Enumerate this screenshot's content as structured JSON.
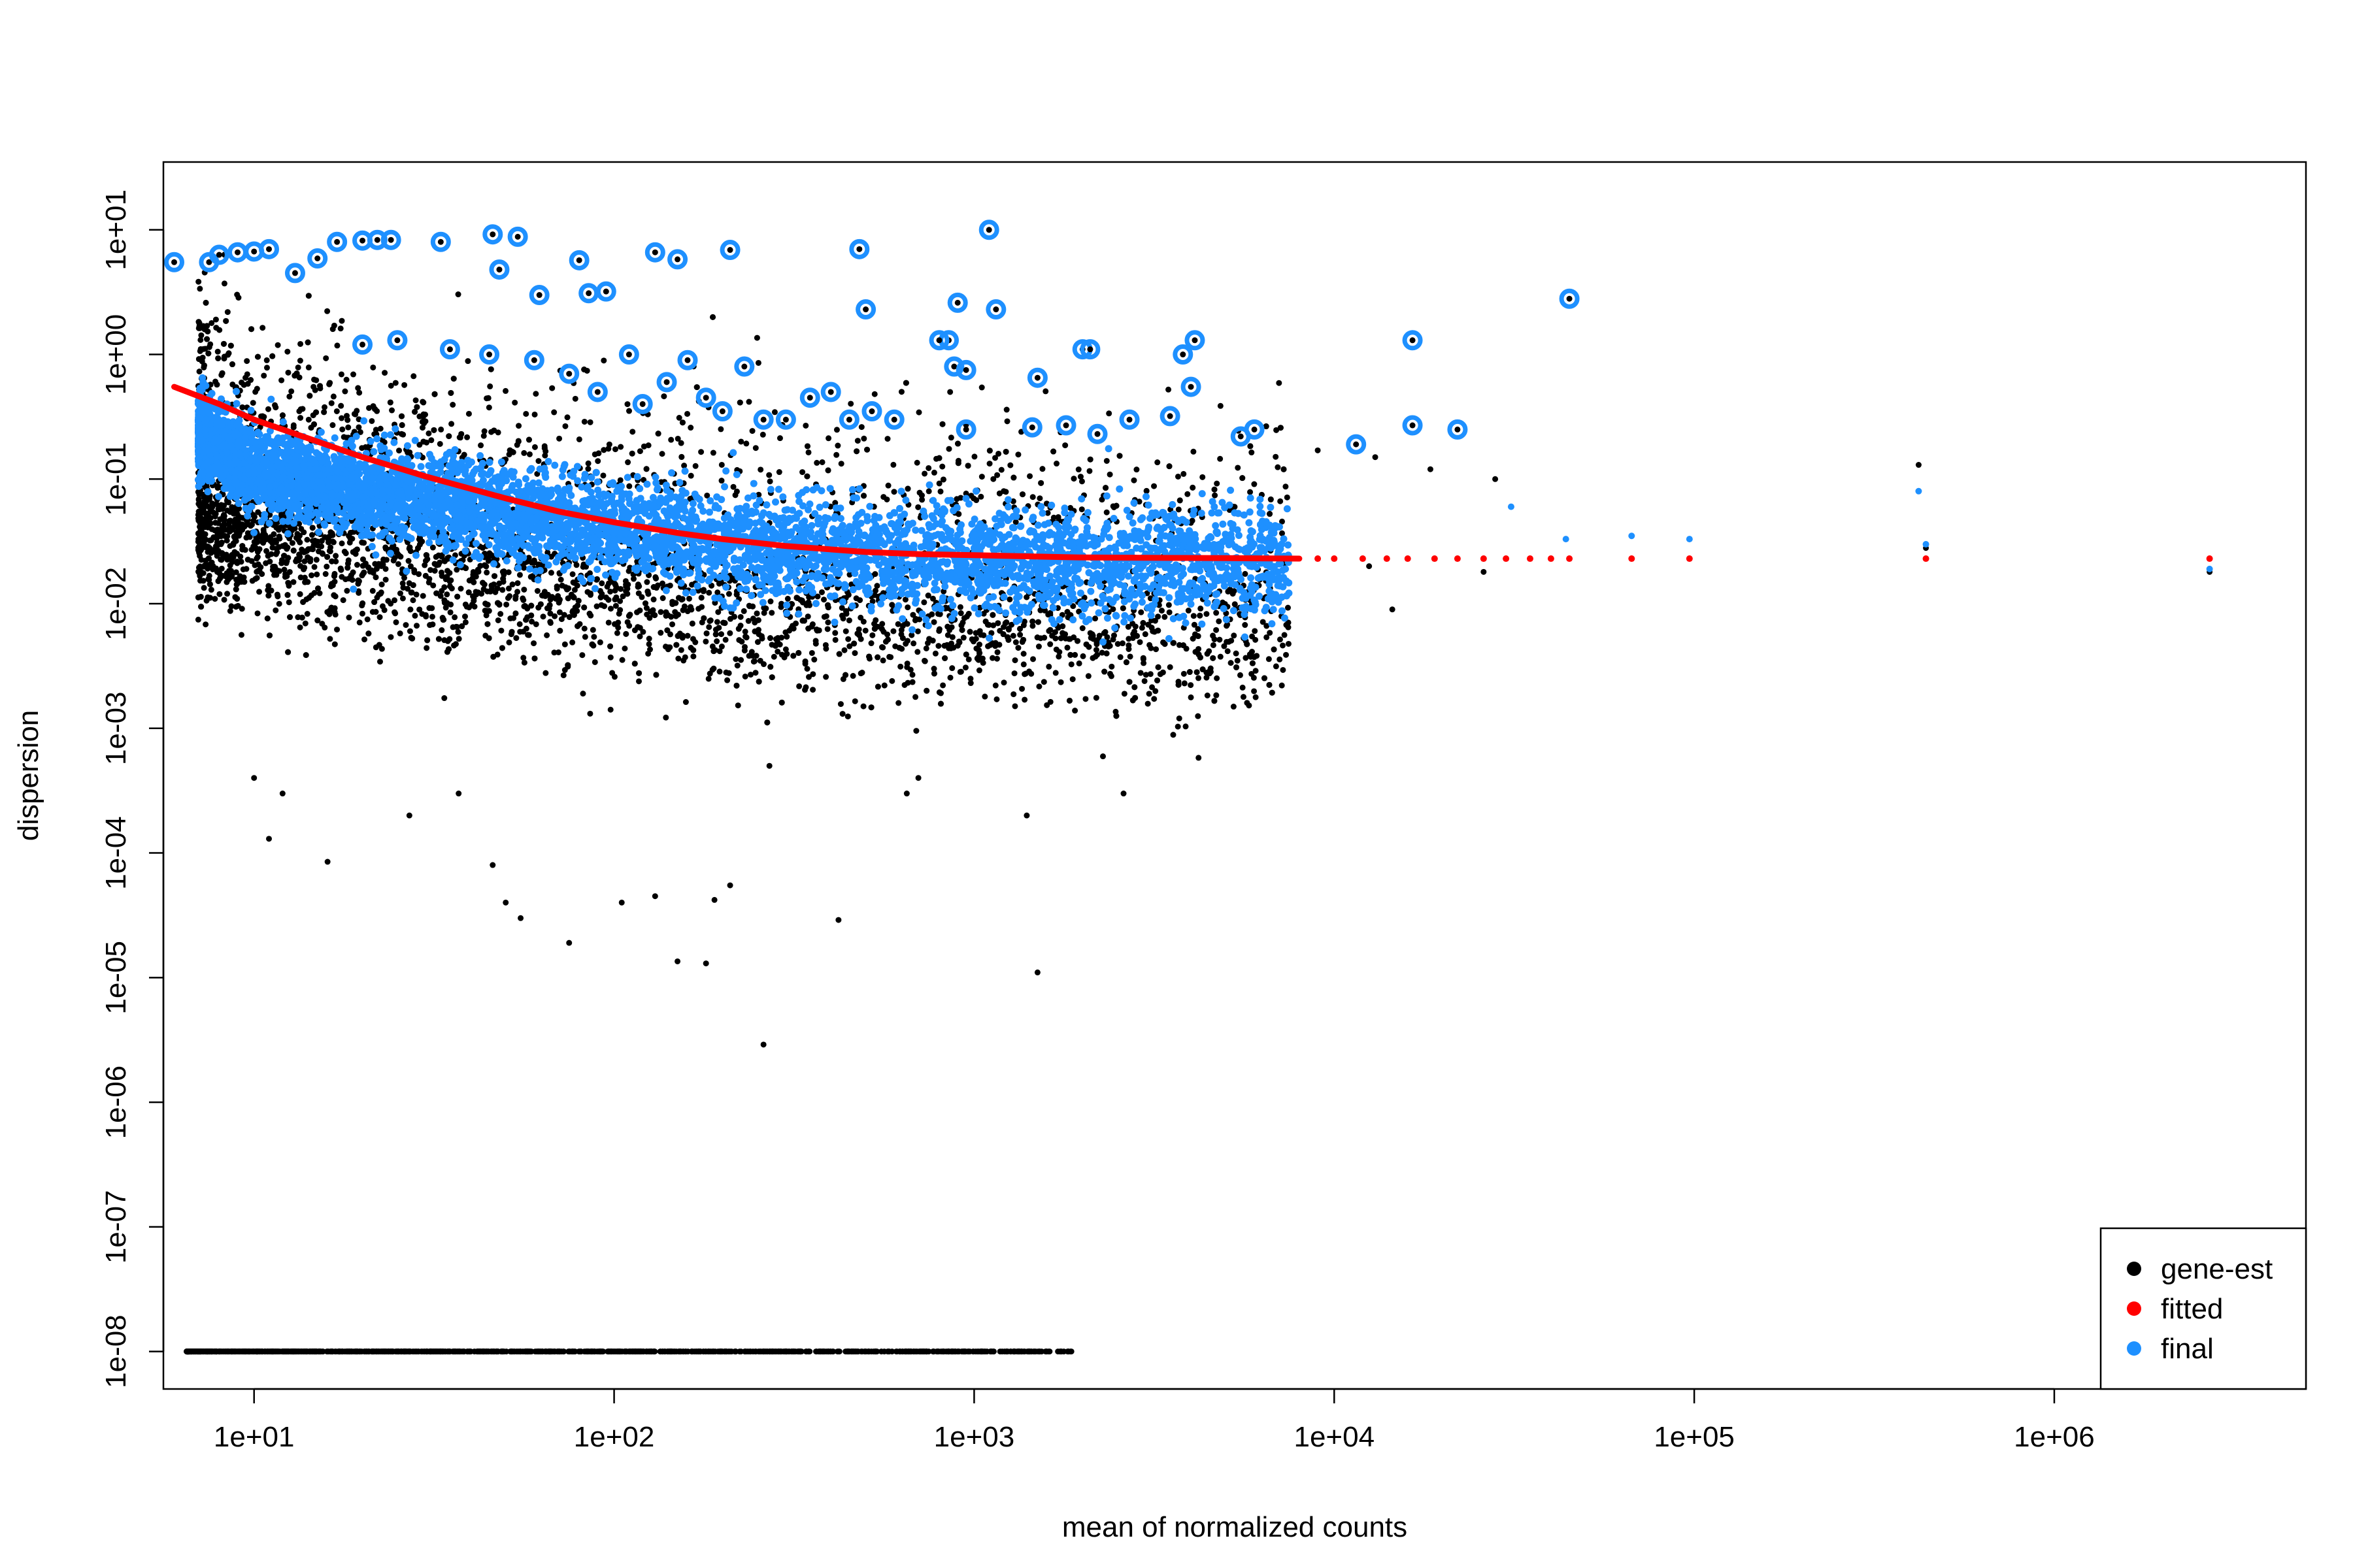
{
  "chart_data": {
    "type": "scatter",
    "title": "",
    "xlabel": "mean of normalized counts",
    "ylabel": "dispersion",
    "x_scale": "log10",
    "y_scale": "log10",
    "xlim": [
      5.6,
      5000000
    ],
    "ylim": [
      5e-09,
      35
    ],
    "x_ticks": [
      {
        "value": 10,
        "label": "1e+01"
      },
      {
        "value": 100,
        "label": "1e+02"
      },
      {
        "value": 1000,
        "label": "1e+03"
      },
      {
        "value": 10000,
        "label": "1e+04"
      },
      {
        "value": 100000,
        "label": "1e+05"
      },
      {
        "value": 1000000,
        "label": "1e+06"
      }
    ],
    "y_ticks": [
      {
        "value": 1e-08,
        "label": "1e-08"
      },
      {
        "value": 1e-07,
        "label": "1e-07"
      },
      {
        "value": 1e-06,
        "label": "1e-06"
      },
      {
        "value": 1e-05,
        "label": "1e-05"
      },
      {
        "value": 0.0001,
        "label": "1e-04"
      },
      {
        "value": 0.001,
        "label": "1e-03"
      },
      {
        "value": 0.01,
        "label": "1e-02"
      },
      {
        "value": 0.1,
        "label": "1e-01"
      },
      {
        "value": 1,
        "label": "1e+00"
      },
      {
        "value": 10,
        "label": "1e+01"
      }
    ],
    "legend": {
      "position": "bottom-right",
      "entries": [
        {
          "label": "gene-est",
          "color": "#000000"
        },
        {
          "label": "fitted",
          "color": "#ff0000"
        },
        {
          "label": "final",
          "color": "#1e90ff"
        }
      ]
    },
    "series": [
      {
        "name": "final",
        "color": "#1e90ff",
        "band_trend": [
          [
            6,
            0.3
          ],
          [
            10,
            0.12
          ],
          [
            30,
            0.065
          ],
          [
            100,
            0.04
          ],
          [
            300,
            0.028
          ],
          [
            1000,
            0.022
          ],
          [
            3000,
            0.022
          ],
          [
            7000,
            0.022
          ]
        ],
        "outliers": [
          [
            6,
            5.5
          ],
          [
            7.5,
            5.5
          ],
          [
            8,
            6.3
          ],
          [
            9,
            6.6
          ],
          [
            10,
            6.7
          ],
          [
            11,
            7.0
          ],
          [
            13,
            4.5
          ],
          [
            15,
            5.9
          ],
          [
            17,
            8.0
          ],
          [
            20,
            8.2
          ],
          [
            22,
            8.3
          ],
          [
            24,
            8.3
          ],
          [
            33,
            8.0
          ],
          [
            46,
            9.2
          ],
          [
            54,
            8.8
          ],
          [
            48,
            4.8
          ],
          [
            62,
            3.0
          ],
          [
            80,
            5.7
          ],
          [
            85,
            3.1
          ],
          [
            95,
            3.2
          ],
          [
            130,
            6.6
          ],
          [
            150,
            5.8
          ],
          [
            210,
            6.9
          ],
          [
            480,
            7.0
          ],
          [
            500,
            2.3
          ],
          [
            1100,
            10.0
          ],
          [
            1150,
            2.3
          ],
          [
            900,
            2.6
          ],
          [
            850,
            1.3
          ],
          [
            45000,
            2.8
          ],
          [
            16500,
            1.3
          ],
          [
            2000,
            1.1
          ],
          [
            3800,
            1.0
          ],
          [
            4100,
            1.3
          ],
          [
            1500,
            0.65
          ],
          [
            2100,
            1.1
          ],
          [
            800,
            1.3
          ],
          [
            880,
            0.8
          ],
          [
            950,
            0.75
          ],
          [
            4000,
            0.55
          ],
          [
            20,
            1.2
          ],
          [
            25,
            1.3
          ],
          [
            35,
            1.1
          ],
          [
            45,
            1.0
          ],
          [
            60,
            0.9
          ],
          [
            75,
            0.7
          ],
          [
            90,
            0.5
          ],
          [
            110,
            1.0
          ],
          [
            120,
            0.4
          ],
          [
            140,
            0.6
          ],
          [
            160,
            0.9
          ],
          [
            180,
            0.45
          ],
          [
            200,
            0.35
          ],
          [
            230,
            0.8
          ],
          [
            260,
            0.3
          ],
          [
            300,
            0.3
          ],
          [
            350,
            0.45
          ],
          [
            400,
            0.5
          ],
          [
            450,
            0.3
          ],
          [
            520,
            0.35
          ],
          [
            600,
            0.3
          ],
          [
            950,
            0.25
          ],
          [
            1450,
            0.26
          ],
          [
            1800,
            0.27
          ],
          [
            2200,
            0.23
          ],
          [
            2700,
            0.3
          ],
          [
            3500,
            0.32
          ],
          [
            5500,
            0.22
          ],
          [
            6000,
            0.25
          ],
          [
            11500,
            0.19
          ],
          [
            16500,
            0.27
          ],
          [
            22000,
            0.25
          ],
          [
            31000,
            0.06
          ],
          [
            44000,
            0.033
          ],
          [
            67000,
            0.035
          ],
          [
            97000,
            0.033
          ],
          [
            440000,
            0.03
          ],
          [
            420000,
            0.08
          ],
          [
            2700000,
            0.019
          ]
        ]
      },
      {
        "name": "fitted",
        "color": "#ff0000",
        "points": [
          [
            6,
            0.55
          ],
          [
            8,
            0.4
          ],
          [
            10,
            0.3
          ],
          [
            15,
            0.2
          ],
          [
            20,
            0.15
          ],
          [
            30,
            0.105
          ],
          [
            50,
            0.07
          ],
          [
            70,
            0.055
          ],
          [
            100,
            0.045
          ],
          [
            150,
            0.037
          ],
          [
            200,
            0.033
          ],
          [
            300,
            0.029
          ],
          [
            500,
            0.026
          ],
          [
            700,
            0.025
          ],
          [
            1000,
            0.0245
          ],
          [
            2000,
            0.0235
          ],
          [
            5000,
            0.0232
          ],
          [
            8000,
            0.023
          ],
          [
            9000,
            0.023
          ],
          [
            10000,
            0.023
          ],
          [
            12000,
            0.023
          ],
          [
            14000,
            0.023
          ],
          [
            16000,
            0.023
          ],
          [
            19000,
            0.023
          ],
          [
            22000,
            0.023
          ],
          [
            26000,
            0.023
          ],
          [
            30000,
            0.023
          ],
          [
            35000,
            0.023
          ],
          [
            40000,
            0.023
          ],
          [
            45000,
            0.023
          ],
          [
            67000,
            0.023
          ],
          [
            97000,
            0.023
          ],
          [
            440000,
            0.023
          ],
          [
            2700000,
            0.023
          ]
        ]
      },
      {
        "name": "gene-est",
        "color": "#000000",
        "band_trend": [
          [
            7,
            0.05
          ],
          [
            10,
            0.04
          ],
          [
            30,
            0.02
          ],
          [
            100,
            0.012
          ],
          [
            300,
            0.008
          ],
          [
            1000,
            0.007
          ],
          [
            3000,
            0.006
          ],
          [
            7000,
            0.006
          ]
        ],
        "outliers": [
          [
            10,
            0.0004
          ],
          [
            11,
            0.00013
          ],
          [
            12,
            0.0003
          ],
          [
            16,
            8.5e-05
          ],
          [
            27,
            0.0002
          ],
          [
            37,
            0.0003
          ],
          [
            46,
            8e-05
          ],
          [
            50,
            4e-05
          ],
          [
            55,
            3e-05
          ],
          [
            75,
            1.9e-05
          ],
          [
            105,
            4e-05
          ],
          [
            130,
            4.5e-05
          ],
          [
            150,
            1.35e-05
          ],
          [
            180,
            1.3e-05
          ],
          [
            190,
            4.2e-05
          ],
          [
            210,
            5.5e-05
          ],
          [
            260,
            2.9e-06
          ],
          [
            270,
            0.0005
          ],
          [
            420,
            2.9e-05
          ],
          [
            1500,
            1.1e-05
          ],
          [
            650,
            0.0003
          ],
          [
            700,
            0.0004
          ],
          [
            1400,
            0.0002
          ],
          [
            2600,
            0.0003
          ],
          [
            4200,
            0.00058
          ],
          [
            9000,
            0.17
          ],
          [
            13000,
            0.15
          ],
          [
            18500,
            0.12
          ],
          [
            28000,
            0.1
          ],
          [
            26000,
            0.018
          ],
          [
            14500,
            0.009
          ],
          [
            12500,
            0.02
          ],
          [
            420000,
            0.13
          ],
          [
            440000,
            0.028
          ],
          [
            2700000,
            0.018
          ]
        ],
        "zero_row_y": 1e-08,
        "zero_row_xrange": [
          6.5,
          1900
        ]
      }
    ]
  }
}
